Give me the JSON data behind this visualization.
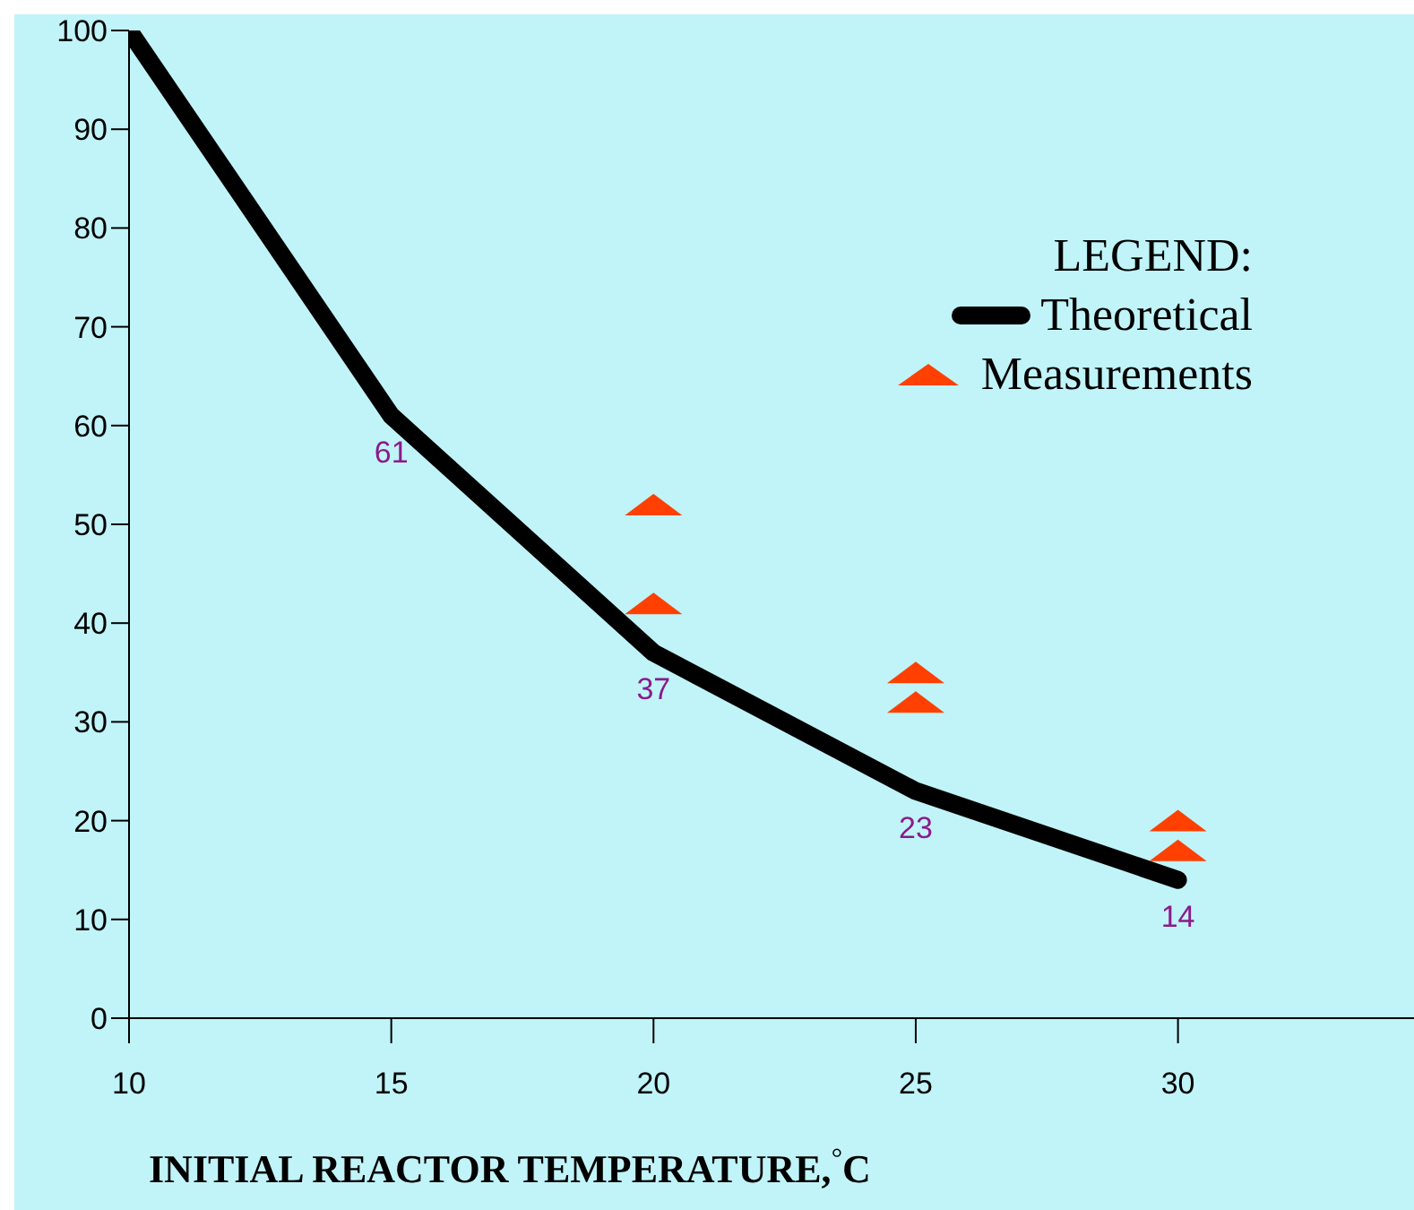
{
  "chart_data": {
    "type": "line",
    "xlabel": "INITIAL REACTOR TEMPERATURE,$^{°}$C",
    "legend_title": "LEGEND:",
    "legend": "top right",
    "xlim": [
      10,
      34.5
    ],
    "xticks": [
      10,
      15,
      20,
      25,
      30
    ],
    "ylim": [
      0,
      100
    ],
    "yticks": [
      0,
      10,
      20,
      30,
      40,
      50,
      60,
      70,
      80,
      90,
      100
    ],
    "series": [
      {
        "name": "Theoretical",
        "color": "#000000",
        "marker": "none",
        "x": [
          10,
          15,
          20,
          25,
          30
        ],
        "values": [
          100,
          61,
          37,
          23,
          14
        ],
        "value_labels": [
          null,
          "61",
          "37",
          "23",
          "14"
        ]
      },
      {
        "name": "Measurements",
        "type": "scatter",
        "color": "#ff4000",
        "marker": "triangle",
        "x": [
          20,
          20,
          25,
          25,
          30,
          30
        ],
        "values": [
          52,
          42,
          35,
          32,
          20,
          17
        ]
      }
    ]
  }
}
